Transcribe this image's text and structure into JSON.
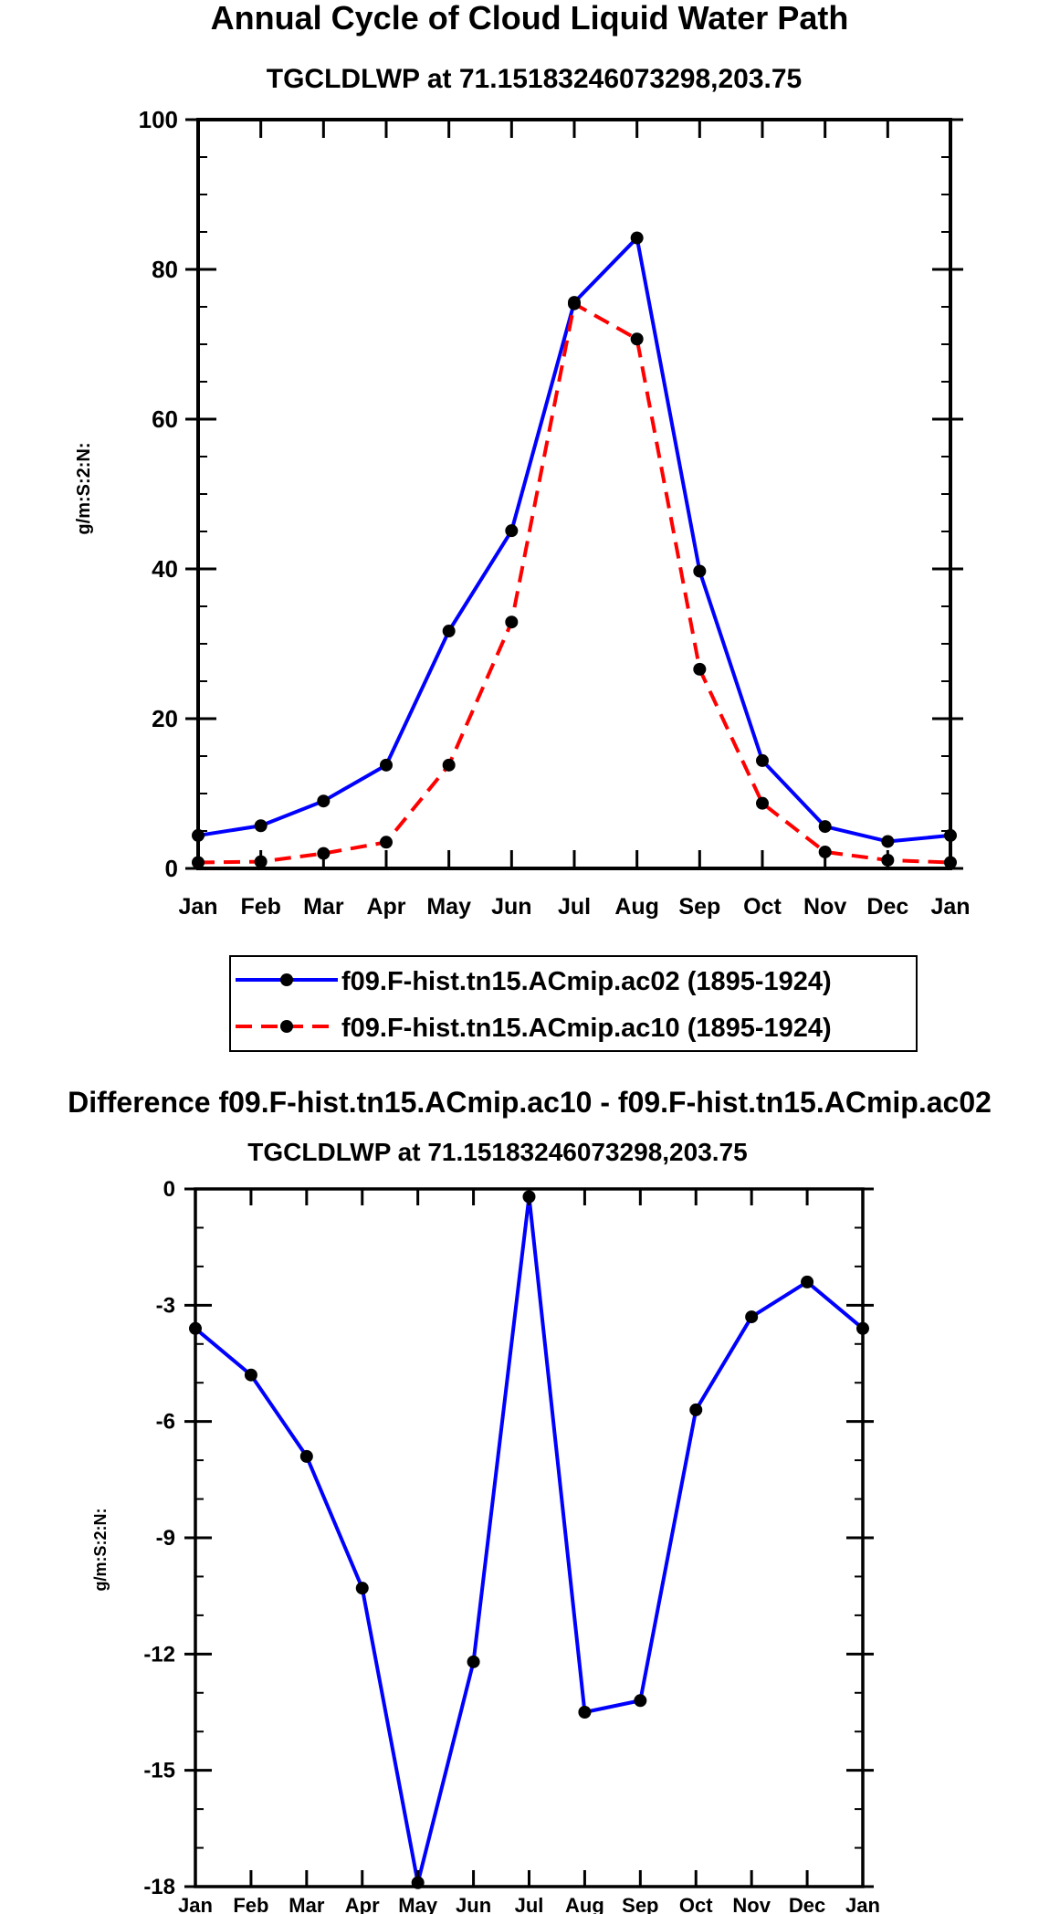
{
  "chart_data": [
    {
      "type": "line",
      "title": "Annual Cycle of Cloud Liquid Water Path",
      "subtitle": "TGCLDLWP at 71.15183246073298,203.75",
      "xlabel": "",
      "ylabel": "g/m:S:2:N:",
      "ylim": [
        0,
        100
      ],
      "yticks": [
        0,
        20,
        40,
        60,
        80,
        100
      ],
      "categories": [
        "Jan",
        "Feb",
        "Mar",
        "Apr",
        "May",
        "Jun",
        "Jul",
        "Aug",
        "Sep",
        "Oct",
        "Nov",
        "Dec",
        "Jan"
      ],
      "series": [
        {
          "name": "f09.F-hist.tn15.ACmip.ac02 (1895-1924)",
          "color": "#0000ff",
          "dash": "solid",
          "values": [
            4.4,
            5.7,
            9.0,
            13.8,
            31.7,
            45.1,
            75.6,
            84.2,
            39.7,
            14.4,
            5.6,
            3.6,
            4.4
          ]
        },
        {
          "name": "f09.F-hist.tn15.ACmip.ac10 (1895-1924)",
          "color": "#ff0000",
          "dash": "dashed",
          "values": [
            0.8,
            0.9,
            2.0,
            3.5,
            13.8,
            32.9,
            75.4,
            70.7,
            26.6,
            8.7,
            2.2,
            1.1,
            0.8
          ]
        }
      ],
      "legend_position": "bottom"
    },
    {
      "type": "line",
      "title": "Difference f09.F-hist.tn15.ACmip.ac10 - f09.F-hist.tn15.ACmip.ac02",
      "subtitle": "TGCLDLWP at 71.15183246073298,203.75",
      "xlabel": "",
      "ylabel": "g/m:S:2:N:",
      "ylim": [
        -18,
        0
      ],
      "yticks": [
        0,
        -3,
        -6,
        -9,
        -12,
        -15,
        -18
      ],
      "categories": [
        "Jan",
        "Feb",
        "Mar",
        "Apr",
        "May",
        "Jun",
        "Jul",
        "Aug",
        "Sep",
        "Oct",
        "Nov",
        "Dec",
        "Jan"
      ],
      "series": [
        {
          "name": "Difference",
          "color": "#0000ff",
          "dash": "solid",
          "values": [
            -3.6,
            -4.8,
            -6.9,
            -10.3,
            -17.9,
            -12.2,
            -0.2,
            -13.5,
            -13.2,
            -5.7,
            -3.3,
            -2.4,
            -3.6
          ]
        }
      ]
    }
  ]
}
